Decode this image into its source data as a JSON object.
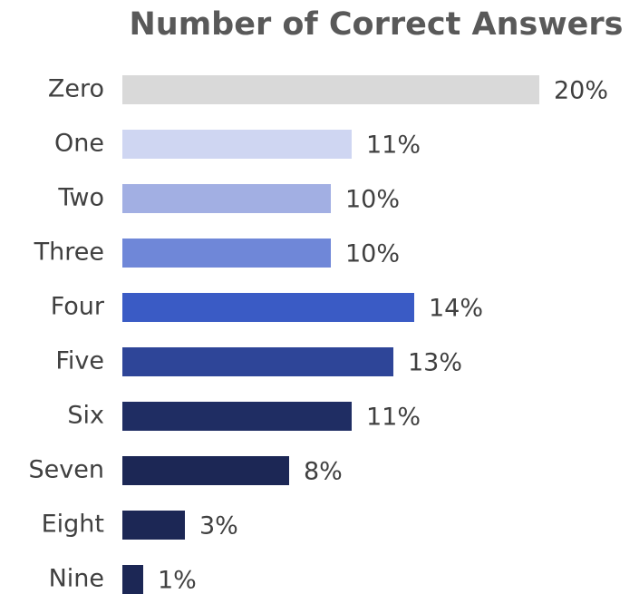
{
  "chart_data": {
    "type": "bar",
    "orientation": "horizontal",
    "title": "Number of Correct Answers",
    "categories": [
      "Zero",
      "One",
      "Two",
      "Three",
      "Four",
      "Five",
      "Six",
      "Seven",
      "Eight",
      "Nine"
    ],
    "values": [
      20,
      11,
      10,
      10,
      14,
      13,
      11,
      8,
      3,
      1
    ],
    "value_labels": [
      "20%",
      "11%",
      "10%",
      "10%",
      "14%",
      "13%",
      "11%",
      "8%",
      "3%",
      "1%"
    ],
    "colors": [
      "#d9d9d9",
      "#cfd6f2",
      "#a2afe3",
      "#6f87d8",
      "#3a5bc5",
      "#2e4598",
      "#1f2d63",
      "#1c2755",
      "#1c2755",
      "#1c2755"
    ]
  }
}
